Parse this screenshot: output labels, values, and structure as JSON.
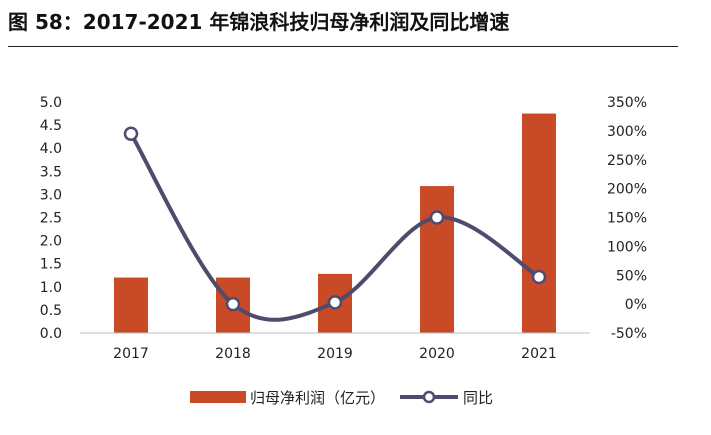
{
  "title": "图 58：2017-2021 年锦浪科技归母净利润及同比增速",
  "chart_data": {
    "type": "bar+line",
    "categories": [
      "2017",
      "2018",
      "2019",
      "2020",
      "2021"
    ],
    "series": [
      {
        "name": "归母净利润（亿元）",
        "type": "bar",
        "axis": "left",
        "values": [
          1.2,
          1.2,
          1.28,
          3.18,
          4.75
        ],
        "color": "#C84A26"
      },
      {
        "name": "同比",
        "type": "line",
        "axis": "right",
        "smooth": true,
        "values": [
          295,
          0,
          3,
          150,
          47
        ],
        "color": "#4E4B6E"
      }
    ],
    "y_left": {
      "min": 0,
      "max": 5.0,
      "step": 0.5,
      "ticks": [
        "0.0",
        "0.5",
        "1.0",
        "1.5",
        "2.0",
        "2.5",
        "3.0",
        "3.5",
        "4.0",
        "4.5",
        "5.0"
      ]
    },
    "y_right": {
      "min": -50,
      "max": 350,
      "step": 50,
      "ticks": [
        "-50%",
        "0%",
        "50%",
        "100%",
        "150%",
        "200%",
        "250%",
        "300%",
        "350%"
      ]
    },
    "grid": false,
    "legend_position": "bottom"
  }
}
